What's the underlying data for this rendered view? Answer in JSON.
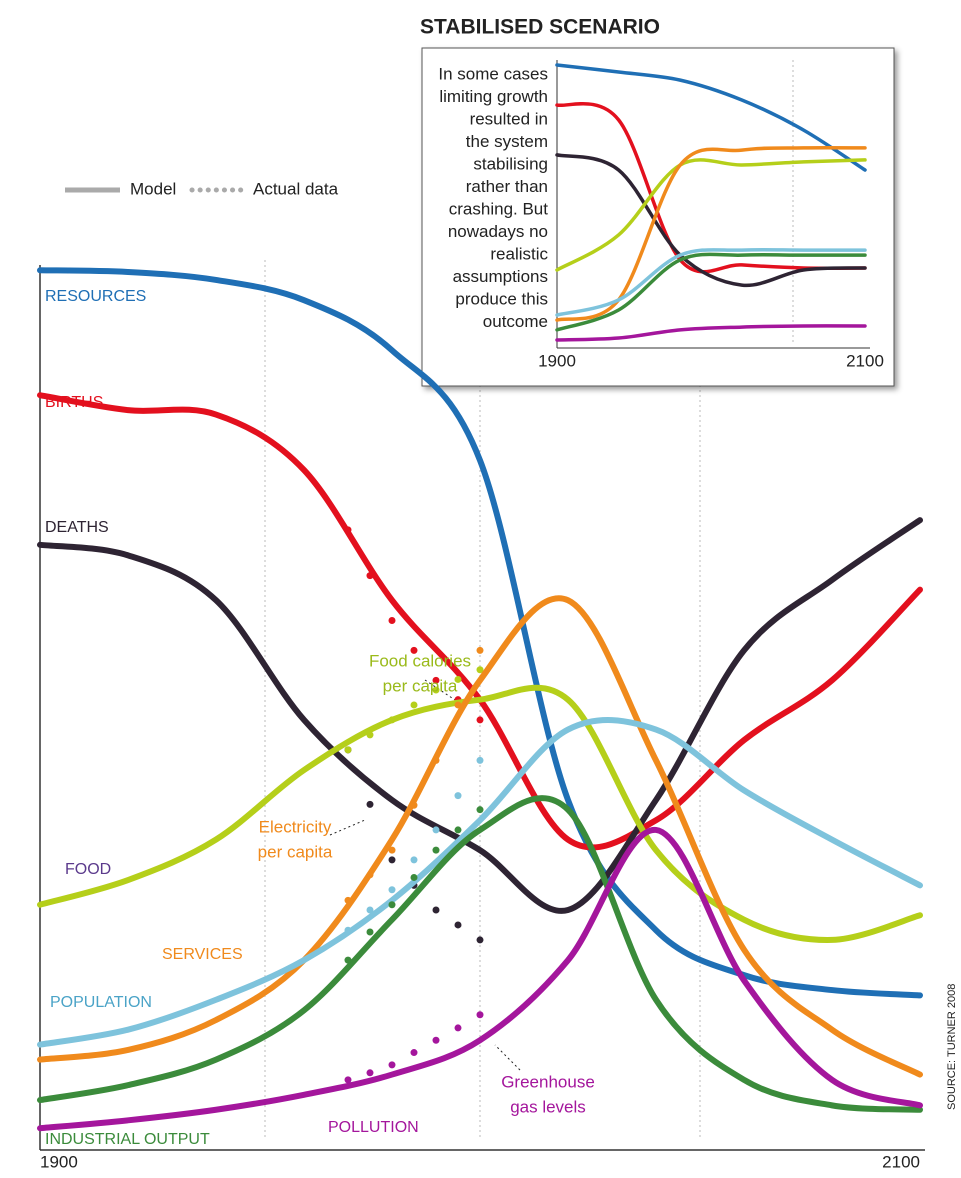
{
  "chart_data": [
    {
      "type": "line",
      "legend": [
        "Model",
        "Actual data"
      ],
      "x": [
        1900,
        1920,
        1940,
        1960,
        1980,
        2000,
        2020,
        2040,
        2060,
        2080,
        2100
      ],
      "xlim": [
        1900,
        2100
      ],
      "xticks": [
        1900,
        2100
      ],
      "ylim": [
        0,
        100
      ],
      "actual_x": [
        1970,
        1975,
        1980,
        1985,
        1990,
        1995,
        2000
      ],
      "series": [
        {
          "name": "RESOURCES",
          "color": "#1f6fb5",
          "values": [
            97.7,
            97.5,
            96.6,
            94.3,
            88.6,
            76.1,
            37.5,
            22.7,
            17.6,
            15.9,
            15.3
          ]
        },
        {
          "name": "BIRTHS",
          "color": "#e3101e",
          "values": [
            83.5,
            81.8,
            81.3,
            75,
            60.2,
            48.9,
            33,
            35.2,
            44.3,
            51.1,
            61.4
          ],
          "actual_values": [
            68.2,
            63,
            57.9,
            54.5,
            51.1,
            48.9,
            46.6
          ]
        },
        {
          "name": "DEATHS",
          "color": "#2e2433",
          "values": [
            66.5,
            65.3,
            60.2,
            46.6,
            37.5,
            31.8,
            25,
            37.5,
            54.5,
            62.5,
            69.3
          ],
          "actual_values": [
            43.2,
            37,
            30.7,
            27.8,
            25,
            23.3,
            21.6
          ]
        },
        {
          "name": "FOOD",
          "color": "#b5cf1a",
          "values": [
            25.6,
            28.4,
            33,
            40.9,
            46.6,
            48.9,
            48.9,
            31.8,
            23.9,
            21.6,
            24.4
          ],
          "actual_values": [
            43.2,
            44.9,
            46.6,
            48.3,
            50,
            51.2,
            52.3
          ]
        },
        {
          "name": "SERVICES",
          "color": "#f08a1c",
          "values": [
            8,
            9.1,
            12.5,
            19.3,
            33,
            51.1,
            60.2,
            42,
            20.5,
            11.4,
            6.3
          ],
          "actual_values": [
            26.1,
            29,
            31.8,
            36.9,
            42,
            48.3,
            54.5
          ]
        },
        {
          "name": "POPULATION",
          "color": "#7ec3dc",
          "values": [
            9.7,
            11.4,
            14.8,
            19.3,
            26.1,
            35.2,
            45.5,
            45.5,
            38.6,
            33,
            27.8
          ],
          "actual_values": [
            22.7,
            25,
            27.3,
            30.7,
            34.1,
            38,
            42
          ]
        },
        {
          "name": "INDUSTRIAL OUTPUT",
          "color": "#3b8b3b",
          "values": [
            3.4,
            5.1,
            8,
            13.6,
            23.9,
            34.1,
            36.4,
            14.8,
            5.7,
            2.8,
            2.3
          ],
          "actual_values": [
            19.3,
            22.5,
            25.6,
            28.7,
            31.8,
            34.1,
            36.4
          ]
        },
        {
          "name": "POLLUTION",
          "color": "#a4169c",
          "values": [
            0.2,
            1.1,
            2.3,
            4,
            6.3,
            10.2,
            19.3,
            34.1,
            17,
            5.7,
            2.8
          ],
          "actual_values": [
            5.7,
            6.5,
            7.4,
            8.8,
            10.2,
            11.6,
            13.1
          ]
        }
      ],
      "annotations": [
        {
          "lines": [
            "Food calories",
            "per capita"
          ],
          "color": "#9aba1a"
        },
        {
          "lines": [
            "Electricity",
            "per capita"
          ],
          "color": "#f08a1c"
        },
        {
          "lines": [
            "Greenhouse",
            "gas levels"
          ],
          "color": "#a4169c"
        }
      ],
      "source": "SOURCE: TURNER 2008"
    },
    {
      "type": "line",
      "title": "STABILISED SCENARIO",
      "text": [
        "In some cases",
        "limiting growth",
        "resulted in",
        "the system",
        "stabilising",
        "rather than",
        "crashing. But",
        "nowadays no",
        "realistic",
        "assumptions",
        "produce this",
        "outcome"
      ],
      "x": [
        1900,
        1940,
        1980,
        2020,
        2060,
        2100
      ],
      "xlim": [
        1900,
        2100
      ],
      "xticks": [
        1900,
        2100
      ],
      "ylim": [
        0,
        100
      ],
      "series": [
        {
          "color": "#1f6fb5",
          "values": [
            100,
            97.5,
            94.6,
            87.5,
            76.8,
            62.5
          ]
        },
        {
          "color": "#e3101e",
          "values": [
            85.7,
            80.4,
            30.4,
            28.6,
            27.5,
            27.5
          ]
        },
        {
          "color": "#2e2433",
          "values": [
            67.9,
            62.5,
            32.1,
            21.4,
            26.8,
            27.5
          ]
        },
        {
          "color": "#b5cf1a",
          "values": [
            26.8,
            39.3,
            64.3,
            64.3,
            65.4,
            66.1
          ]
        },
        {
          "color": "#f08a1c",
          "values": [
            8.9,
            16.1,
            64.3,
            69.6,
            70.4,
            70.4
          ]
        },
        {
          "color": "#7ec3dc",
          "values": [
            10.7,
            16.1,
            32.1,
            33.9,
            33.9,
            33.9
          ]
        },
        {
          "color": "#3b8b3b",
          "values": [
            5.4,
            12.5,
            30.4,
            32.1,
            32.1,
            32.1
          ]
        },
        {
          "color": "#a4169c",
          "values": [
            1.8,
            2.5,
            5.4,
            6.4,
            6.8,
            6.8
          ]
        }
      ]
    }
  ]
}
